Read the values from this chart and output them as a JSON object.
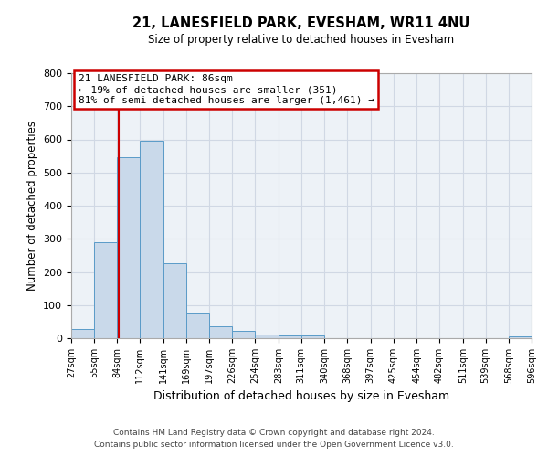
{
  "title1": "21, LANESFIELD PARK, EVESHAM, WR11 4NU",
  "title2": "Size of property relative to detached houses in Evesham",
  "xlabel": "Distribution of detached houses by size in Evesham",
  "ylabel": "Number of detached properties",
  "bin_edges": [
    27,
    55,
    84,
    112,
    141,
    169,
    197,
    226,
    254,
    283,
    311,
    340,
    368,
    397,
    425,
    454,
    482,
    511,
    539,
    568,
    596
  ],
  "bar_heights": [
    27,
    289,
    545,
    595,
    225,
    78,
    37,
    22,
    10,
    8,
    7,
    0,
    0,
    0,
    0,
    0,
    0,
    0,
    0,
    5
  ],
  "bar_fill_color": "#c9d9ea",
  "bar_edge_color": "#5a9bc8",
  "property_line_x": 86,
  "property_line_color": "#cc0000",
  "annotation_line1": "21 LANESFIELD PARK: 86sqm",
  "annotation_line2": "← 19% of detached houses are smaller (351)",
  "annotation_line3": "81% of semi-detached houses are larger (1,461) →",
  "annotation_box_color": "#cc0000",
  "ylim": [
    0,
    800
  ],
  "yticks": [
    0,
    100,
    200,
    300,
    400,
    500,
    600,
    700,
    800
  ],
  "tick_labels": [
    "27sqm",
    "55sqm",
    "84sqm",
    "112sqm",
    "141sqm",
    "169sqm",
    "197sqm",
    "226sqm",
    "254sqm",
    "283sqm",
    "311sqm",
    "340sqm",
    "368sqm",
    "397sqm",
    "425sqm",
    "454sqm",
    "482sqm",
    "511sqm",
    "539sqm",
    "568sqm",
    "596sqm"
  ],
  "footer1": "Contains HM Land Registry data © Crown copyright and database right 2024.",
  "footer2": "Contains public sector information licensed under the Open Government Licence v3.0.",
  "grid_color": "#d0d8e4",
  "bg_color": "#edf2f7"
}
